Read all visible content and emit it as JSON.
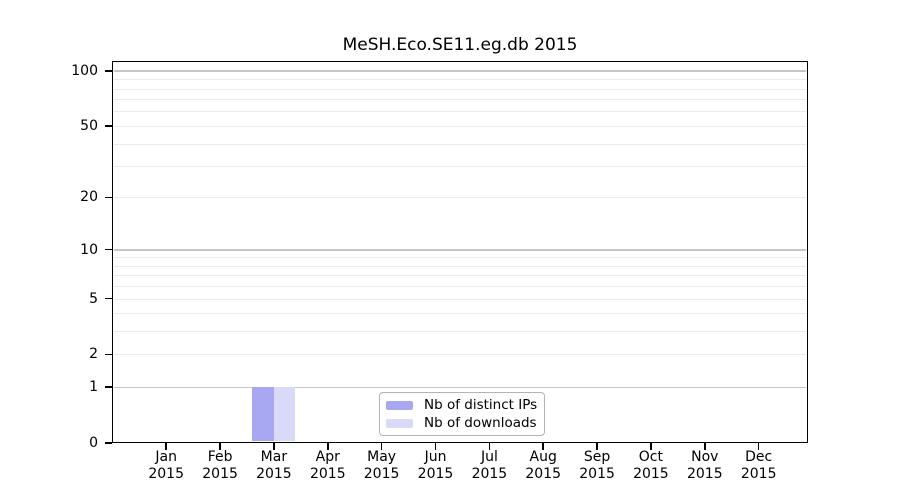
{
  "title": "MeSH.Eco.SE11.eg.db 2015",
  "chart_data": {
    "type": "bar",
    "title": "MeSH.Eco.SE11.eg.db 2015",
    "x_categories": [
      "Jan",
      "Feb",
      "Mar",
      "Apr",
      "May",
      "Jun",
      "Jul",
      "Aug",
      "Sep",
      "Oct",
      "Nov",
      "Dec"
    ],
    "x_sublabel_year": "2015",
    "series": [
      {
        "name": "Nb of distinct IPs",
        "color": "#a8a8f2",
        "values": [
          0,
          0,
          1,
          0,
          0,
          0,
          0,
          0,
          0,
          0,
          0,
          0
        ]
      },
      {
        "name": "Nb of downloads",
        "color": "#d9d9f8",
        "values": [
          0,
          0,
          1,
          0,
          0,
          0,
          0,
          0,
          0,
          0,
          0,
          0
        ]
      }
    ],
    "yscale": "log1p",
    "ylim": [
      0,
      113
    ],
    "yticks": [
      0,
      1,
      2,
      5,
      10,
      20,
      50,
      100
    ],
    "gridlines": {
      "major": [
        1,
        10,
        100
      ],
      "minor": [
        2,
        3,
        4,
        5,
        6,
        7,
        8,
        9,
        20,
        30,
        40,
        50,
        60,
        70,
        80,
        90
      ]
    },
    "legend": {
      "position": "inside-bottom-center",
      "entries": [
        "Nb of distinct IPs",
        "Nb of downloads"
      ]
    },
    "colors": {
      "axis": "#000000",
      "grid_major": "#c6c6c6",
      "grid_minor": "#ebebeb",
      "background": "#ffffff",
      "legend_border": "#b3b3b3"
    }
  }
}
